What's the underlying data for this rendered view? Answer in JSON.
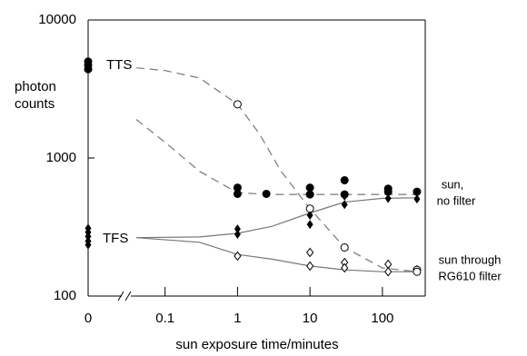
{
  "chart_data": {
    "type": "scatter",
    "xlabel": "sun exposure time/minutes",
    "ylabel": [
      "photon",
      "counts"
    ],
    "xscale": "log",
    "yscale": "log",
    "xlim": [
      0.03,
      390
    ],
    "ylim": [
      100,
      10000
    ],
    "xticks": [
      {
        "value": 0,
        "label": "0"
      },
      0.1,
      1,
      10,
      100
    ],
    "yticks": [
      100,
      1000,
      10000
    ],
    "series": [
      {
        "marker": "filled-circle",
        "color": "#000000",
        "x": [
          0,
          0,
          0,
          1,
          1,
          2.5,
          10,
          10,
          30,
          30,
          120,
          120,
          300
        ],
        "values": [
          5000,
          4700,
          4400,
          610,
          550,
          550,
          610,
          545,
          690,
          545,
          600,
          570,
          570
        ]
      },
      {
        "marker": "filled-diamond",
        "color": "#000000",
        "x": [
          0,
          0,
          0,
          0,
          0,
          1,
          1,
          10,
          10,
          30,
          30,
          120,
          300
        ],
        "values": [
          310,
          290,
          270,
          250,
          235,
          306,
          280,
          385,
          330,
          530,
          460,
          510,
          505
        ]
      },
      {
        "marker": "open-diamond",
        "color": "#000000",
        "x": [
          1,
          10,
          10,
          30,
          30,
          120,
          120,
          300
        ],
        "values": [
          195,
          207,
          165,
          175,
          160,
          170,
          150,
          155
        ]
      },
      {
        "marker": "open-circle",
        "color": "#000000",
        "x": [
          1,
          10,
          30,
          300,
          300
        ],
        "values": [
          2450,
          430,
          225,
          155,
          150
        ]
      }
    ],
    "curves": [
      {
        "style": "dashed",
        "color": "#777777",
        "x": [
          0.04,
          0.1,
          0.3,
          1,
          2,
          4,
          10,
          30,
          100,
          300
        ],
        "values": [
          4500,
          4300,
          3800,
          2450,
          1500,
          800,
          430,
          225,
          160,
          150
        ]
      },
      {
        "style": "dashed",
        "color": "#777777",
        "x": [
          0.04,
          0.1,
          0.3,
          1,
          3,
          10,
          100,
          300
        ],
        "values": [
          1900,
          1300,
          800,
          560,
          545,
          545,
          545,
          545
        ]
      },
      {
        "style": "solid",
        "color": "#777777",
        "x": [
          0.04,
          0.3,
          1,
          3,
          10,
          30,
          100,
          300
        ],
        "values": [
          265,
          268,
          285,
          320,
          400,
          480,
          510,
          515
        ]
      },
      {
        "style": "solid",
        "color": "#777777",
        "x": [
          0.04,
          0.3,
          1,
          3,
          10,
          30,
          100,
          300
        ],
        "values": [
          265,
          245,
          200,
          185,
          165,
          155,
          150,
          150
        ]
      }
    ],
    "annotations": [
      [
        "TTS"
      ],
      [
        "TFS"
      ],
      [
        "sun,",
        "no filter"
      ],
      [
        "sun through",
        "RG610 filter"
      ]
    ]
  }
}
